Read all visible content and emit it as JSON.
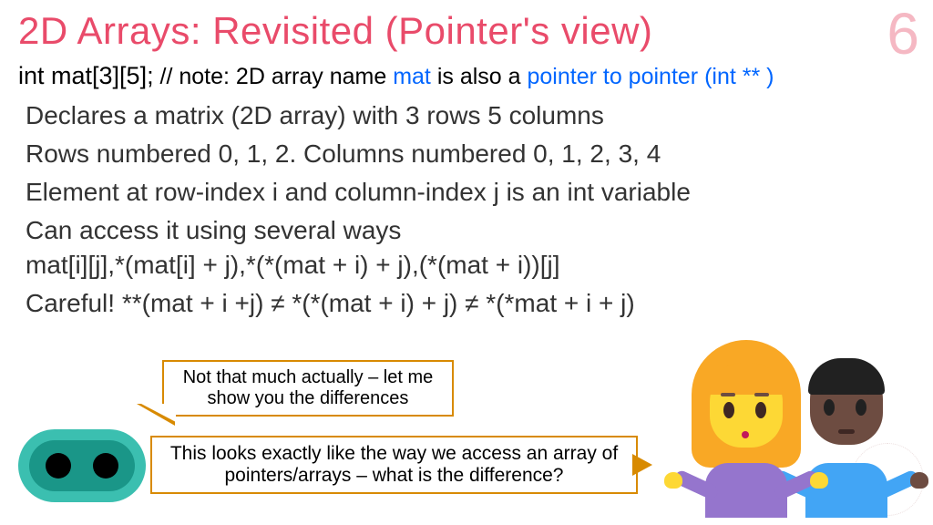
{
  "page_number": "6",
  "title": "2D Arrays: Revisited (Pointer's view)",
  "declaration": {
    "code": "int mat[3][5];",
    "comment_prefix": " // note: 2D array name ",
    "mat_word": "mat",
    "comment_mid": " is also a ",
    "ptr_word": "pointer to pointer (int ** )"
  },
  "lines": {
    "l1": "Declares a matrix (2D array) with 3 rows 5 columns",
    "l2": "Rows numbered 0, 1, 2. Columns numbered 0, 1, 2, 3, 4",
    "l3": "Element at row-index i and column-index j is an int variable",
    "l4": "Can access it using several ways",
    "l5": "mat[i][j],*(mat[i] + j),*(*(mat + i) + j),(*(mat + i))[j]",
    "l6": "Careful! **(mat + i +j) ≠ *(*(mat + i) + j) ≠ *(*mat + i + j)"
  },
  "speech": {
    "bubble1": "Not that much actually – let me show you the differences",
    "bubble2": "This looks exactly like the way we access an array of pointers/arrays – what is the difference?"
  },
  "colors": {
    "title": "#e94b6a",
    "pagenum": "#f5b8c3",
    "highlight": "#0066ff",
    "bubble_border": "#d88a00",
    "robot_body": "#3bbfb0",
    "woman_hair": "#f9a825",
    "woman_skin": "#fdd835",
    "woman_shirt": "#9575cd",
    "man_skin": "#6d4c41",
    "man_shirt": "#42a5f5"
  },
  "typography": {
    "title_fontsize": 42,
    "body_fontsize": 28,
    "decl_fontsize": 27,
    "speech_fontsize": 20,
    "font_family": "Century Gothic"
  }
}
